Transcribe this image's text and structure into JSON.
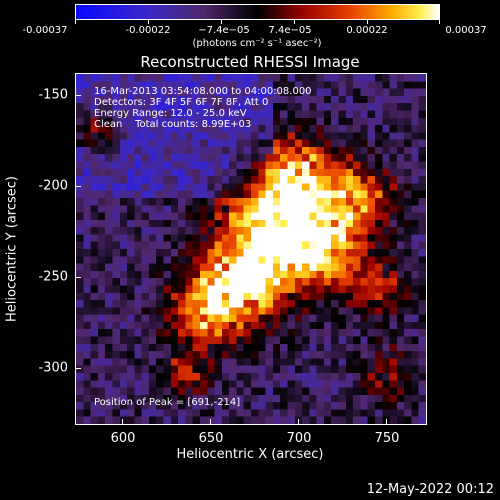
{
  "colorbar": {
    "tick_labels": [
      "-0.00037",
      "-0.00022",
      "−7.4e−05",
      "7.4e−05",
      "0.00022",
      "0.00037"
    ],
    "units": "(photons cm⁻² s⁻¹ asec⁻²)"
  },
  "title": "Reconstructed RHESSI Image",
  "info": {
    "time": "16-Mar-2013 03:54:08.000 to 04:00:08.000",
    "detectors": "Detectors: 3F 4F 5F 6F 7F 8F, Att 0",
    "energy": "Energy Range: 12.0 - 25.0 keV",
    "method": "Clean    Total counts: 8.99E+03"
  },
  "peak_label": "Position of Peak = [691,-214]",
  "axes": {
    "xlabel": "Heliocentric X (arcsec)",
    "ylabel": "Heliocentric Y (arcsec)",
    "x_ticks": [
      "600",
      "650",
      "700",
      "750"
    ],
    "y_ticks": [
      "-150",
      "-200",
      "-250",
      "-300"
    ],
    "xlim": [
      575,
      767
    ],
    "ylim": [
      -329,
      -137
    ]
  },
  "datestamp": "12-May-2022 00:12"
}
